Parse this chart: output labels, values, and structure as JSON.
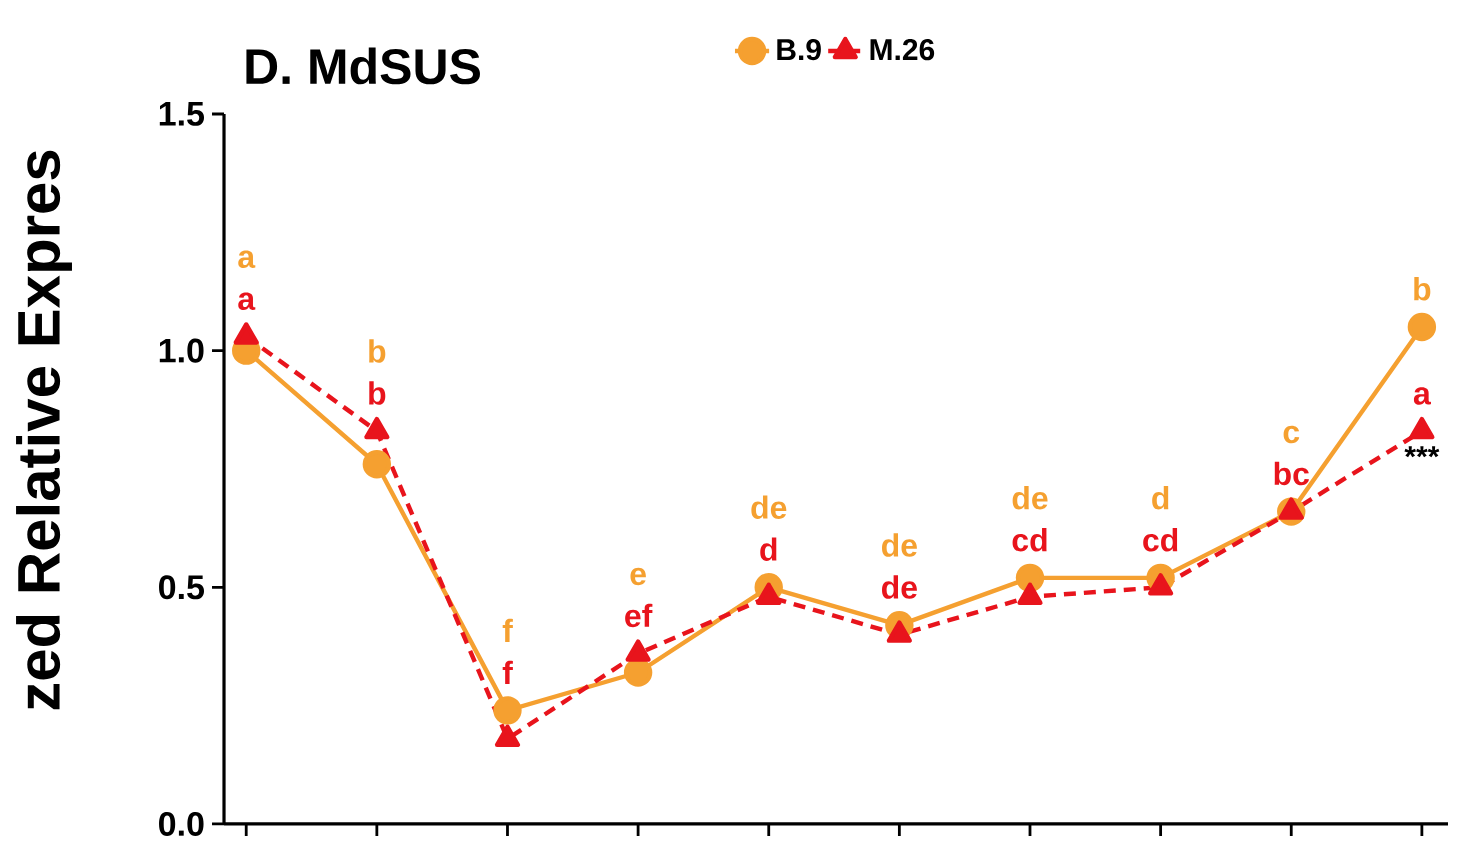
{
  "chart_data": {
    "type": "line",
    "title": "D. MdSUS",
    "ylabel": "zed Relative Expres",
    "categories": [
      null,
      null,
      null,
      null,
      null,
      null,
      null,
      null,
      null,
      null
    ],
    "series": [
      {
        "name": "B.9",
        "color": "#f5a030",
        "marker": "circle",
        "line_style": "solid",
        "values": [
          1.0,
          0.76,
          0.24,
          0.32,
          0.5,
          0.42,
          0.52,
          0.52,
          0.66,
          1.05
        ],
        "value_labels": [
          "a",
          "b",
          "f",
          "e",
          "de",
          "de",
          "de",
          "d",
          "c",
          "b"
        ]
      },
      {
        "name": "M.26",
        "color": "#e8141c",
        "marker": "triangle",
        "line_style": "dashed",
        "values": [
          1.03,
          0.83,
          0.18,
          0.36,
          0.48,
          0.4,
          0.48,
          0.5,
          0.66,
          0.83
        ],
        "value_labels": [
          "a",
          "b",
          "f",
          "ef",
          "d",
          "de",
          "cd",
          "cd",
          "bc",
          "a"
        ]
      }
    ],
    "annotations": [
      "***"
    ],
    "ylim": [
      0,
      1.5
    ],
    "yticks": [
      {
        "value": 0,
        "label": "0.0"
      },
      {
        "value": 0.5,
        "label": "0.5"
      },
      {
        "value": 1.0,
        "label": "1.0"
      },
      {
        "value": 1.5,
        "label": "1.5"
      }
    ],
    "grid": false,
    "legend": "top",
    "tick_labels": "y"
  }
}
